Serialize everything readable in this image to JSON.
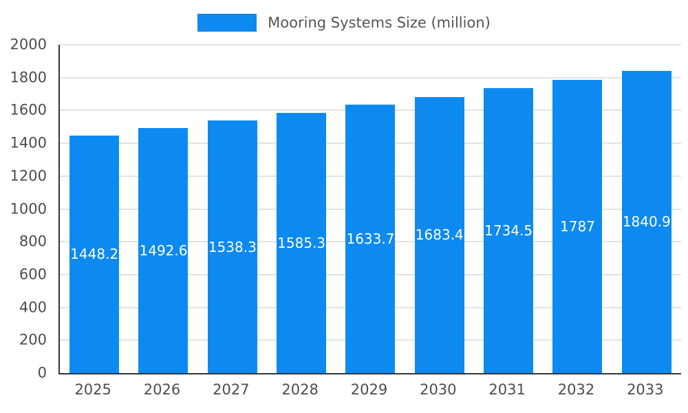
{
  "legend": {
    "label": "Mooring Systems Size (million)",
    "swatch_color": "#0d8af2"
  },
  "chart_data": {
    "type": "bar",
    "title": "Mooring Systems Size (million)",
    "categories": [
      "2025",
      "2026",
      "2027",
      "2028",
      "2029",
      "2030",
      "2031",
      "2032",
      "2033"
    ],
    "values": [
      1448.2,
      1492.6,
      1538.3,
      1585.3,
      1633.7,
      1683.4,
      1734.5,
      1787,
      1840.9
    ],
    "xlabel": "",
    "ylabel": "",
    "ylim": [
      0,
      2000
    ],
    "ytick_step": 200,
    "bar_color": "#0d8af2",
    "value_label_color": "#ffffff",
    "grid": true,
    "legend_position": "top"
  }
}
